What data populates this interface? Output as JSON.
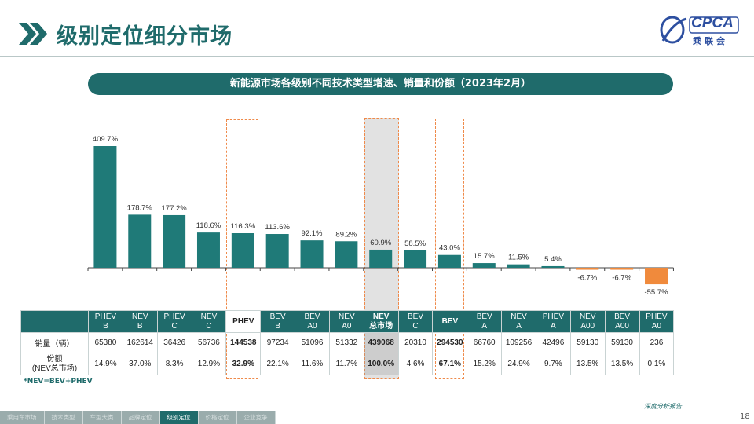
{
  "header": {
    "title": "级别定位细分市场"
  },
  "logo": {
    "text": "CPCA",
    "sub": "乘联会"
  },
  "banner": {
    "text": "新能源市场各级别不同技术类型增速、销量和份额（2023年2月）"
  },
  "colors": {
    "teal": "#1f6b6b",
    "positive_bar": "#1f7a78",
    "negative_bar": "#f08a3c",
    "highlight_dash": "#ef8a4a"
  },
  "chart_data": {
    "type": "bar",
    "categories": [
      "PHEV B",
      "NEV B",
      "PHEV C",
      "NEV C",
      "PHEV",
      "BEV B",
      "BEV A0",
      "NEV A0",
      "NEV 总市场",
      "BEV C",
      "BEV",
      "BEV A",
      "NEV A",
      "PHEV A",
      "NEV A00",
      "BEV A00",
      "PHEV A0"
    ],
    "values": [
      409.7,
      178.7,
      177.2,
      118.6,
      116.3,
      113.6,
      92.1,
      89.2,
      60.9,
      58.5,
      43.0,
      15.7,
      11.5,
      5.4,
      -6.7,
      -6.7,
      -55.7
    ],
    "value_labels": [
      "409.7%",
      "178.7%",
      "177.2%",
      "118.6%",
      "116.3%",
      "113.6%",
      "92.1%",
      "89.2%",
      "60.9%",
      "58.5%",
      "43.0%",
      "15.7%",
      "11.5%",
      "5.4%",
      "-6.7%",
      "-6.7%",
      "-55.7%"
    ],
    "ylim": [
      -60,
      420
    ],
    "grid": false,
    "highlighted_dashed": [
      4,
      10
    ],
    "highlighted_shaded": [
      8
    ]
  },
  "table": {
    "headers": [
      [
        "PHEV",
        "B"
      ],
      [
        "NEV",
        "B"
      ],
      [
        "PHEV",
        "C"
      ],
      [
        "NEV",
        "C"
      ],
      [
        "PHEV"
      ],
      [
        "BEV",
        "B"
      ],
      [
        "BEV",
        "A0"
      ],
      [
        "NEV",
        "A0"
      ],
      [
        "NEV",
        "总市场"
      ],
      [
        "BEV",
        "C"
      ],
      [
        "BEV"
      ],
      [
        "BEV",
        "A"
      ],
      [
        "NEV",
        "A"
      ],
      [
        "PHEV",
        "A"
      ],
      [
        "NEV",
        "A00"
      ],
      [
        "BEV",
        "A00"
      ],
      [
        "PHEV",
        "A0"
      ]
    ],
    "rows": [
      {
        "label": [
          "销量（辆）"
        ],
        "values": [
          "65380",
          "162614",
          "36426",
          "56736",
          "144538",
          "97234",
          "51096",
          "51332",
          "439068",
          "20310",
          "294530",
          "66760",
          "109256",
          "42496",
          "59130",
          "59130",
          "236"
        ]
      },
      {
        "label": [
          "份额",
          "(NEV总市场)"
        ],
        "values": [
          "14.9%",
          "37.0%",
          "8.3%",
          "12.9%",
          "32.9%",
          "22.1%",
          "11.6%",
          "11.7%",
          "100.0%",
          "4.6%",
          "67.1%",
          "15.2%",
          "24.9%",
          "9.7%",
          "13.5%",
          "13.5%",
          "0.1%"
        ]
      }
    ],
    "bold_columns": [
      4,
      8,
      10
    ]
  },
  "note": "*NEV=BEV+PHEV",
  "footer": {
    "nav": [
      "乘用车市场",
      "技术类型",
      "车型大类",
      "品牌定位",
      "级别定位",
      "价格定位",
      "企业竞争"
    ],
    "active_index": 4,
    "report_label": "深度分析报告",
    "page_number": "18"
  }
}
